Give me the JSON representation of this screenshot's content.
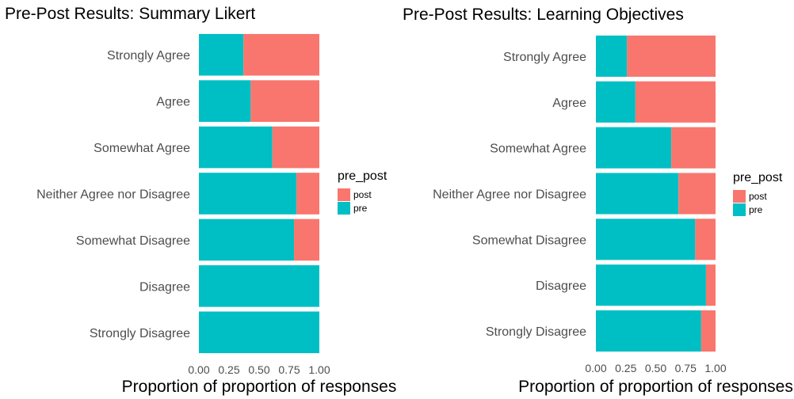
{
  "legend": {
    "title": "pre_post",
    "entries": [
      "post",
      "pre"
    ]
  },
  "colors": {
    "post": "#F8766D",
    "pre": "#00BFC4"
  },
  "chart_data": [
    {
      "type": "bar",
      "orientation": "horizontal",
      "stacked": true,
      "title": "Pre-Post Results: Summary Likert",
      "xlabel": "Proportion of proportion of responses",
      "ylabel": "",
      "xlim": [
        0,
        1
      ],
      "x_ticks": [
        "0.00",
        "0.25",
        "0.50",
        "0.75",
        "1.00"
      ],
      "categories": [
        "Strongly Agree",
        "Agree",
        "Somewhat Agree",
        "Neither Agree nor Disagree",
        "Somewhat Disagree",
        "Disagree",
        "Strongly Disagree"
      ],
      "series": [
        {
          "name": "pre",
          "values": [
            0.37,
            0.43,
            0.61,
            0.81,
            0.79,
            1.0,
            1.0
          ]
        },
        {
          "name": "post",
          "values": [
            0.63,
            0.57,
            0.39,
            0.19,
            0.21,
            0.0,
            0.0
          ]
        }
      ],
      "legend_position": "right",
      "grid": false
    },
    {
      "type": "bar",
      "orientation": "horizontal",
      "stacked": true,
      "title": "Pre-Post Results: Learning Objectives",
      "xlabel": "Proportion of proportion of responses",
      "ylabel": "",
      "xlim": [
        0,
        1
      ],
      "x_ticks": [
        "0.00",
        "0.25",
        "0.50",
        "0.75",
        "1.00"
      ],
      "categories": [
        "Strongly Agree",
        "Agree",
        "Somewhat Agree",
        "Neither Agree nor Disagree",
        "Somewhat Disagree",
        "Disagree",
        "Strongly Disagree"
      ],
      "series": [
        {
          "name": "pre",
          "values": [
            0.26,
            0.33,
            0.63,
            0.69,
            0.83,
            0.92,
            0.88
          ]
        },
        {
          "name": "post",
          "values": [
            0.74,
            0.67,
            0.37,
            0.31,
            0.17,
            0.08,
            0.12
          ]
        }
      ],
      "legend_position": "right",
      "grid": false
    }
  ]
}
